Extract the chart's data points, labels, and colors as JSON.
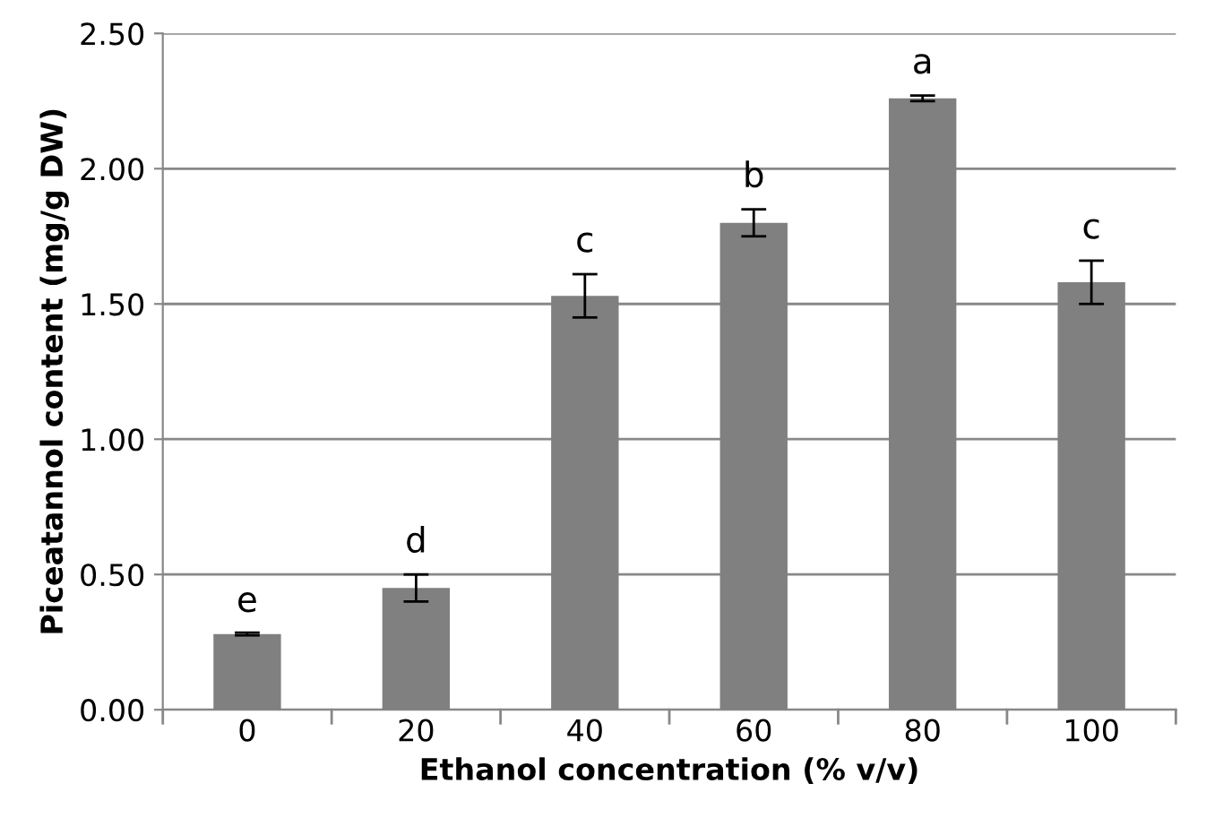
{
  "chart_data": {
    "type": "bar",
    "xlabel": "Ethanol concentration (% v/v)",
    "ylabel": "Piceatannol content (mg/g DW)",
    "categories": [
      "0",
      "20",
      "40",
      "60",
      "80",
      "100"
    ],
    "values": [
      0.28,
      0.45,
      1.53,
      1.8,
      2.26,
      1.58
    ],
    "errors": [
      0.005,
      0.05,
      0.08,
      0.05,
      0.01,
      0.08
    ],
    "color": "#808080",
    "ylim": [
      0,
      2.5
    ],
    "yticks": [
      {
        "value": 0,
        "label": "0.00"
      },
      {
        "value": 0.5,
        "label": "0.50"
      },
      {
        "value": 1.0,
        "label": "1.00"
      },
      {
        "value": 1.5,
        "label": "1.50"
      },
      {
        "value": 2.0,
        "label": "2.00"
      },
      {
        "value": 2.5,
        "label": "2.50"
      }
    ],
    "grid": "y",
    "annotations": [
      {
        "text": "e",
        "x": "0",
        "y": 0.28
      },
      {
        "text": "d",
        "x": "20",
        "y": 0.5
      },
      {
        "text": "c",
        "x": "40",
        "y": 1.61
      },
      {
        "text": "b",
        "x": "60",
        "y": 1.85
      },
      {
        "text": "a",
        "x": "80",
        "y": 2.27
      },
      {
        "text": "c",
        "x": "100",
        "y": 1.66
      }
    ]
  }
}
